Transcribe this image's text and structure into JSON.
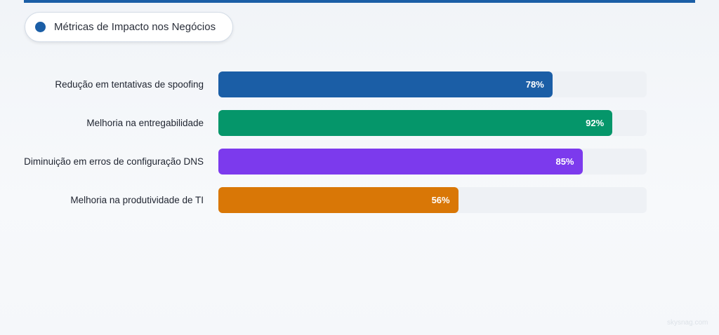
{
  "header": {
    "title": "Métricas de Impacto nos Negócios",
    "accent": "#1b5ea6"
  },
  "chart_data": {
    "type": "bar",
    "orientation": "horizontal",
    "title": "Métricas de Impacto nos Negócios",
    "categories": [
      "Redução em tentativas de spoofing",
      "Melhoria na entregabilidade",
      "Diminuição em erros de configuração DNS",
      "Melhoria na produtividade de TI"
    ],
    "values": [
      78,
      92,
      85,
      56
    ],
    "labels": [
      "78%",
      "92%",
      "85%",
      "56%"
    ],
    "colors": [
      "#1b5ea6",
      "#05966a",
      "#7c3aed",
      "#d97706"
    ],
    "xlim": [
      0,
      100
    ],
    "unit": "%",
    "grid": false
  },
  "watermark": "skysnag.com"
}
